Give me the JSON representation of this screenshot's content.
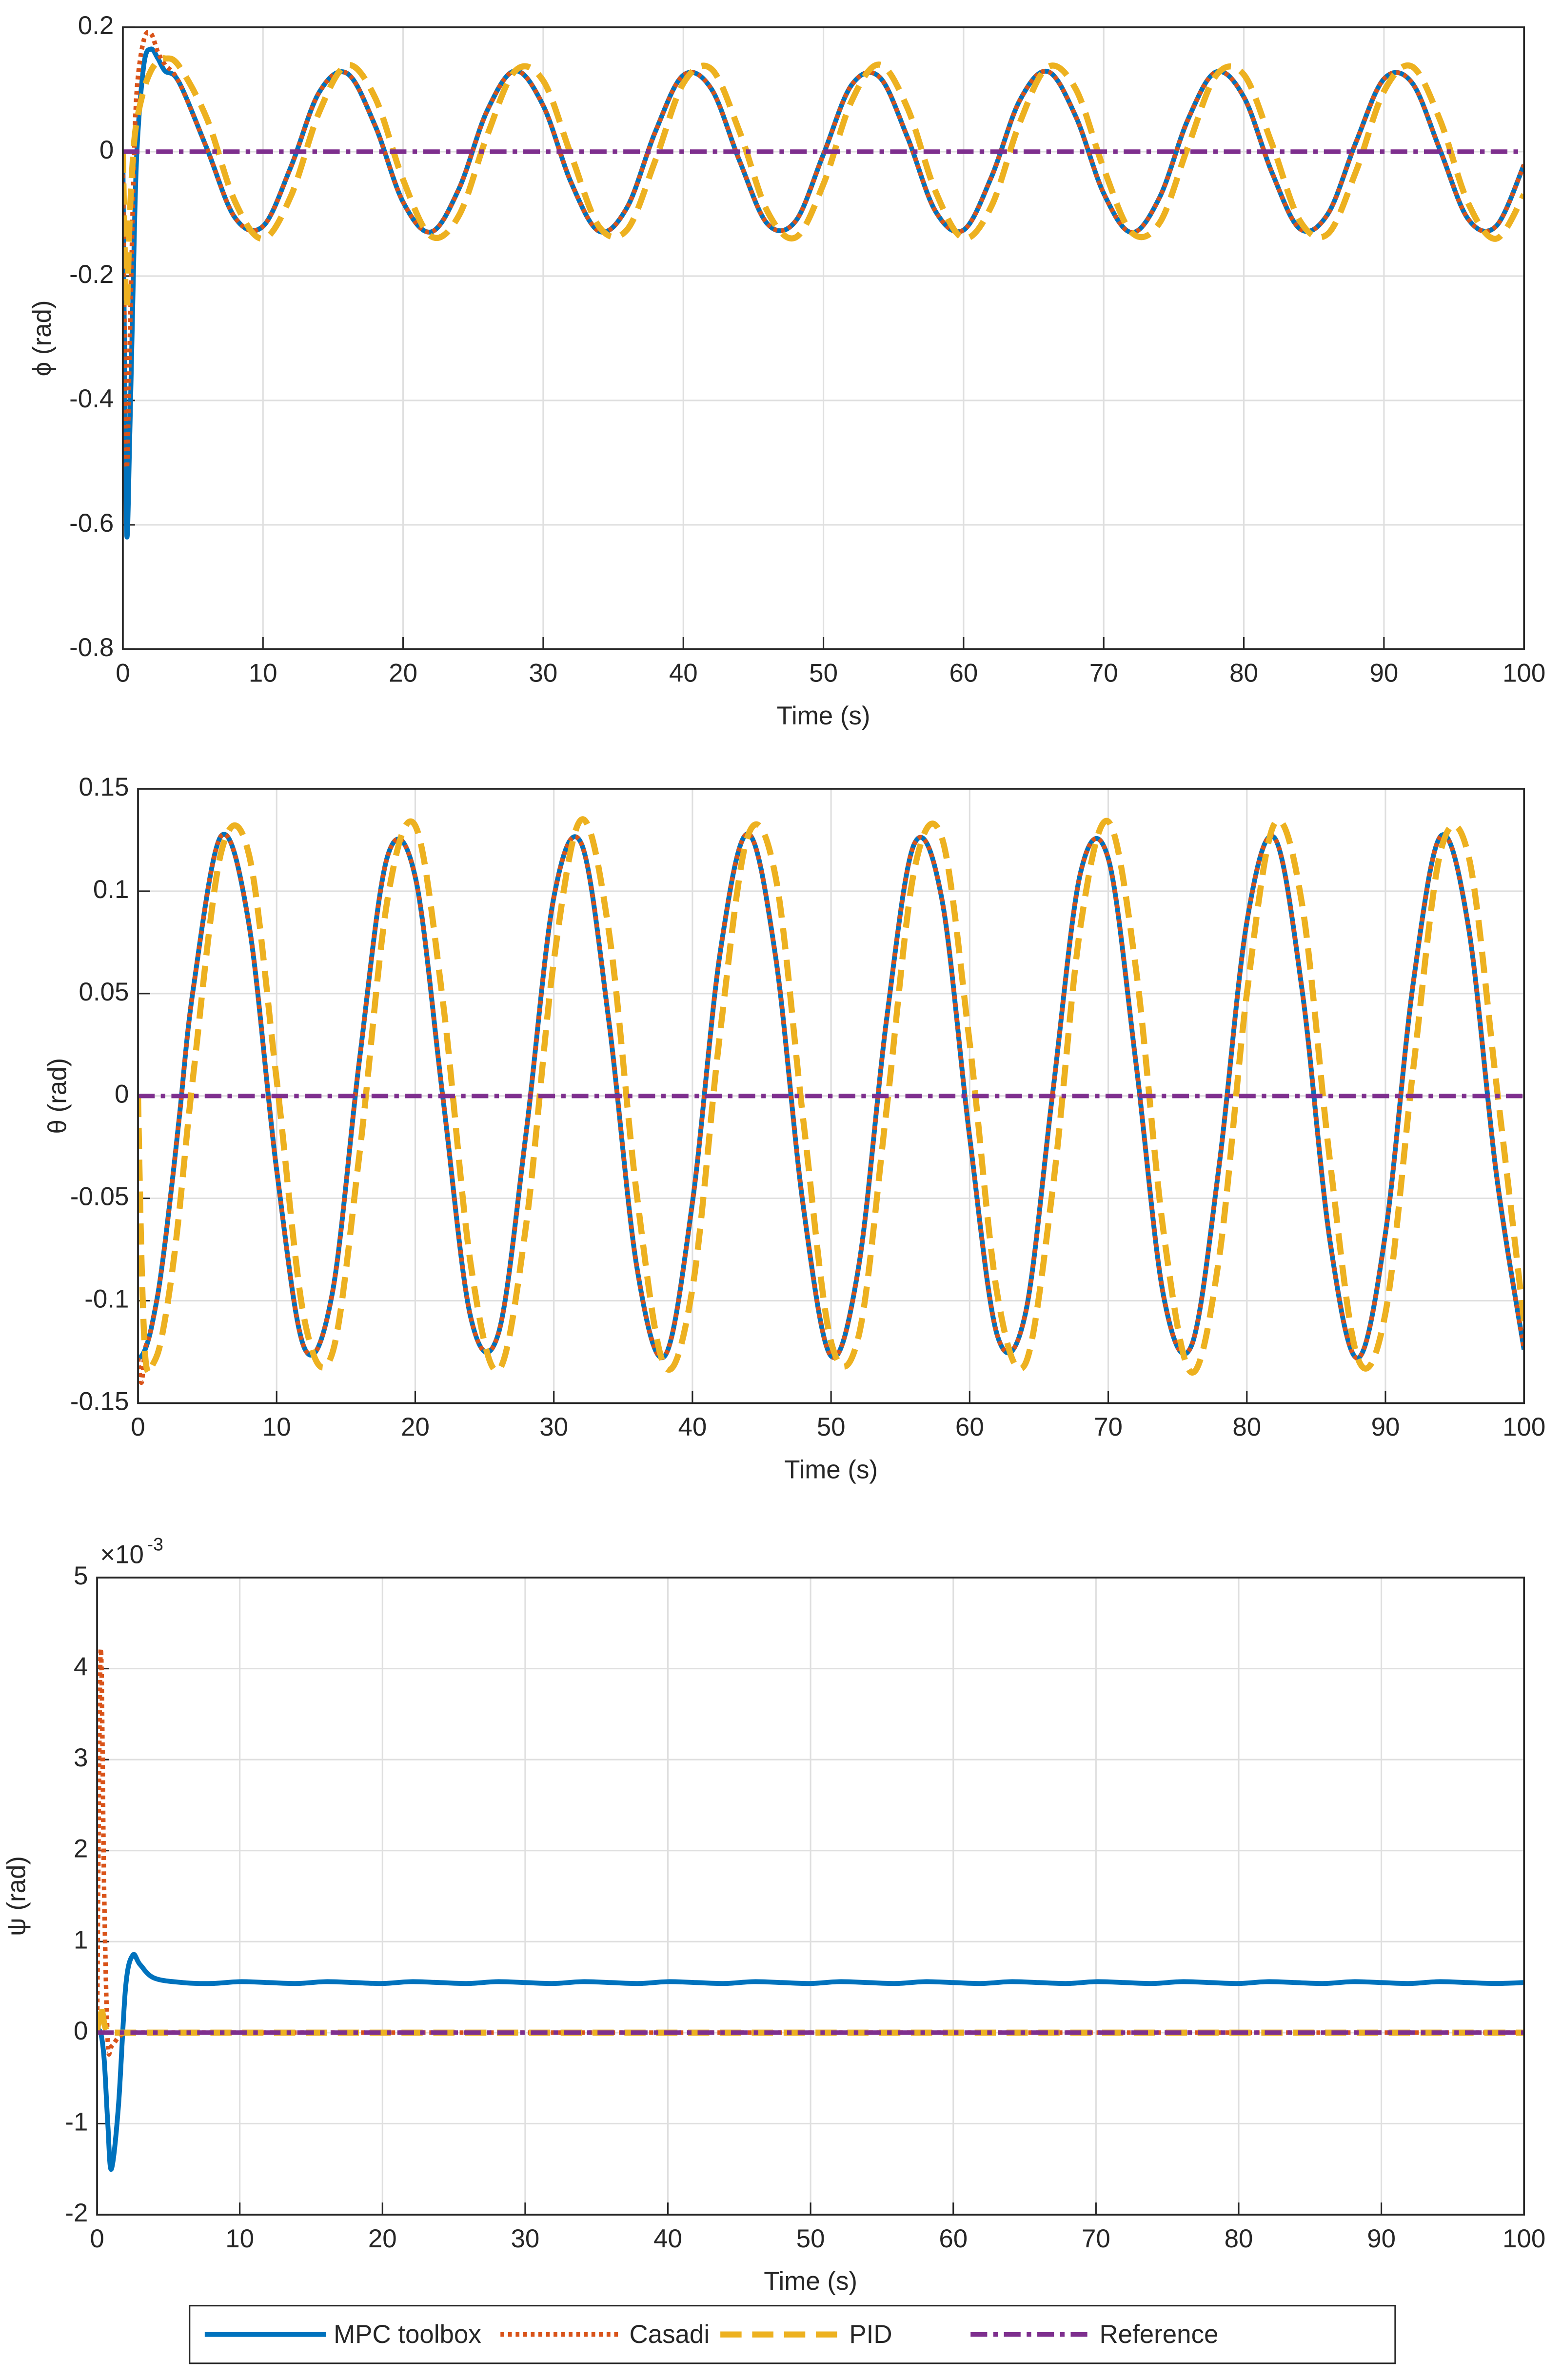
{
  "chart_data": [
    {
      "type": "line",
      "xlabel": "Time (s)",
      "ylabel": "ϕ (rad)",
      "x": [
        0,
        0.25,
        0.5,
        0.75,
        1,
        1.5,
        2,
        2.5,
        3,
        4,
        6,
        8,
        10,
        12,
        14,
        16,
        18,
        20,
        22,
        24,
        26,
        28,
        30,
        32,
        34,
        36,
        38,
        40,
        42,
        44,
        46,
        48,
        50,
        52,
        54,
        56,
        58,
        60,
        62,
        64,
        66,
        68,
        70,
        72,
        74,
        76,
        78,
        80,
        82,
        84,
        86,
        88,
        90,
        92,
        94,
        96,
        98,
        100
      ],
      "xlim": [
        0,
        100
      ],
      "xticks": [
        0,
        10,
        20,
        30,
        40,
        50,
        60,
        70,
        80,
        90,
        100
      ],
      "ylim": [
        -0.8,
        0.2
      ],
      "yticks": [
        -0.8,
        -0.6,
        -0.4,
        -0.2,
        0,
        0.2
      ],
      "grid": true,
      "series": [
        {
          "name": "MPC toolbox",
          "color": "#0072bd",
          "style": "solid",
          "values": [
            0,
            -0.6,
            -0.45,
            -0.2,
            0,
            0.14,
            0.165,
            0.15,
            0.13,
            0.112,
            0.005,
            -0.106,
            -0.12,
            -0.024,
            0.095,
            0.126,
            0.042,
            -0.081,
            -0.129,
            -0.059,
            0.066,
            0.13,
            0.074,
            -0.05,
            -0.128,
            -0.089,
            0.032,
            0.123,
            0.101,
            -0.014,
            -0.116,
            -0.112,
            -0.004,
            0.107,
            0.12,
            0.023,
            -0.096,
            -0.126,
            -0.04,
            0.082,
            0.129,
            0.057,
            -0.067,
            -0.13,
            -0.073,
            0.051,
            0.128,
            0.088,
            -0.033,
            -0.124,
            -0.1,
            0.015,
            0.117,
            0.111,
            0.003,
            -0.108,
            -0.12,
            -0.021
          ]
        },
        {
          "name": "Casadi",
          "color": "#d95319",
          "style": "dotted",
          "values": [
            0,
            -0.5,
            -0.3,
            -0.05,
            0.1,
            0.18,
            0.19,
            0.16,
            0.14,
            0.112,
            0.005,
            -0.106,
            -0.12,
            -0.024,
            0.095,
            0.126,
            0.042,
            -0.081,
            -0.129,
            -0.059,
            0.066,
            0.13,
            0.074,
            -0.05,
            -0.128,
            -0.089,
            0.032,
            0.123,
            0.101,
            -0.014,
            -0.116,
            -0.112,
            -0.004,
            0.107,
            0.12,
            0.023,
            -0.096,
            -0.126,
            -0.04,
            0.082,
            0.129,
            0.057,
            -0.067,
            -0.13,
            -0.073,
            0.051,
            0.128,
            0.088,
            -0.033,
            -0.124,
            -0.1,
            0.015,
            0.117,
            0.111,
            0.003,
            -0.108,
            -0.12,
            -0.021
          ]
        },
        {
          "name": "PID",
          "color": "#edb120",
          "style": "dashed",
          "values": [
            0,
            -0.25,
            -0.1,
            0,
            0.05,
            0.1,
            0.13,
            0.145,
            0.15,
            0.138,
            0.053,
            -0.08,
            -0.14,
            -0.071,
            0.063,
            0.139,
            0.087,
            -0.045,
            -0.136,
            -0.102,
            0.026,
            0.13,
            0.114,
            -0.006,
            -0.121,
            -0.125,
            -0.014,
            0.11,
            0.133,
            0.033,
            -0.096,
            -0.138,
            -0.052,
            0.081,
            0.14,
            0.07,
            -0.064,
            -0.139,
            -0.087,
            0.046,
            0.136,
            0.101,
            -0.027,
            -0.13,
            -0.114,
            0.007,
            0.122,
            0.124,
            0.013,
            -0.111,
            -0.132,
            -0.032,
            0.097,
            0.137,
            0.051,
            -0.082,
            -0.14,
            -0.069
          ]
        },
        {
          "name": "Reference",
          "color": "#7e2f8e",
          "style": "dashdot",
          "values": [
            0,
            0,
            0,
            0,
            0,
            0,
            0,
            0,
            0,
            0,
            0,
            0,
            0,
            0,
            0,
            0,
            0,
            0,
            0,
            0,
            0,
            0,
            0,
            0,
            0,
            0,
            0,
            0,
            0,
            0,
            0,
            0,
            0,
            0,
            0,
            0,
            0,
            0,
            0,
            0,
            0,
            0,
            0,
            0,
            0,
            0,
            0,
            0,
            0,
            0,
            0,
            0,
            0,
            0,
            0,
            0,
            0,
            0
          ]
        }
      ]
    },
    {
      "type": "line",
      "xlabel": "Time (s)",
      "ylabel": "θ (rad)",
      "x": [
        0,
        0.25,
        0.5,
        0.75,
        1,
        1.5,
        2,
        2.5,
        3,
        4,
        6,
        8,
        10,
        12,
        14,
        16,
        18,
        20,
        22,
        24,
        26,
        28,
        30,
        32,
        34,
        36,
        38,
        40,
        42,
        44,
        46,
        48,
        50,
        52,
        54,
        56,
        58,
        60,
        62,
        64,
        66,
        68,
        70,
        72,
        74,
        76,
        78,
        80,
        82,
        84,
        86,
        88,
        90,
        92,
        94,
        96,
        98,
        100
      ],
      "xlim": [
        0,
        100
      ],
      "xticks": [
        0,
        10,
        20,
        30,
        40,
        50,
        60,
        70,
        80,
        90,
        100
      ],
      "ylim": [
        -0.15,
        0.15
      ],
      "yticks": [
        -0.15,
        -0.1,
        -0.05,
        0,
        0.05,
        0.1,
        0.15
      ],
      "grid": true,
      "series": [
        {
          "name": "MPC toolbox",
          "color": "#0072bd",
          "style": "solid",
          "values": [
            -0.128,
            -0.127,
            -0.124,
            -0.119,
            -0.112,
            -0.094,
            -0.069,
            -0.04,
            -0.009,
            0.053,
            0.127,
            0.084,
            -0.036,
            -0.123,
            -0.097,
            0.019,
            0.117,
            0.107,
            -0.001,
            -0.108,
            -0.116,
            -0.018,
            0.097,
            0.123,
            0.035,
            -0.084,
            -0.127,
            -0.052,
            0.07,
            0.128,
            0.068,
            -0.054,
            -0.127,
            -0.083,
            0.037,
            0.123,
            0.096,
            -0.02,
            -0.117,
            -0.107,
            0.002,
            0.109,
            0.116,
            0.016,
            -0.098,
            -0.122,
            -0.034,
            0.085,
            0.126,
            0.051,
            -0.071,
            -0.128,
            -0.067,
            0.055,
            0.127,
            0.082,
            -0.038,
            -0.124
          ]
        },
        {
          "name": "Casadi",
          "color": "#d95319",
          "style": "dotted",
          "values": [
            -0.128,
            -0.14,
            -0.124,
            -0.119,
            -0.112,
            -0.094,
            -0.069,
            -0.04,
            -0.009,
            0.053,
            0.127,
            0.084,
            -0.036,
            -0.123,
            -0.097,
            0.019,
            0.117,
            0.107,
            -0.001,
            -0.108,
            -0.116,
            -0.018,
            0.097,
            0.123,
            0.035,
            -0.084,
            -0.127,
            -0.052,
            0.07,
            0.128,
            0.068,
            -0.054,
            -0.127,
            -0.083,
            0.037,
            0.123,
            0.096,
            -0.02,
            -0.117,
            -0.107,
            0.002,
            0.109,
            0.116,
            0.016,
            -0.098,
            -0.122,
            -0.034,
            0.085,
            0.126,
            0.051,
            -0.071,
            -0.128,
            -0.067,
            0.055,
            0.127,
            0.082,
            -0.038,
            -0.124
          ]
        },
        {
          "name": "PID",
          "color": "#edb120",
          "style": "dashed",
          "values": [
            0,
            -0.08,
            -0.125,
            -0.135,
            -0.132,
            -0.124,
            -0.107,
            -0.084,
            -0.055,
            0.011,
            0.119,
            0.118,
            0.008,
            -0.109,
            -0.126,
            -0.027,
            0.096,
            0.132,
            0.046,
            -0.082,
            -0.134,
            -0.063,
            0.066,
            0.135,
            0.079,
            -0.049,
            -0.132,
            -0.094,
            0.031,
            0.127,
            0.107,
            -0.012,
            -0.12,
            -0.117,
            -0.007,
            0.11,
            0.126,
            0.026,
            -0.097,
            -0.131,
            -0.045,
            0.083,
            0.134,
            0.062,
            -0.067,
            -0.135,
            -0.079,
            0.05,
            0.133,
            0.093,
            -0.032,
            -0.128,
            -0.106,
            0.013,
            0.12,
            0.117,
            0.006,
            -0.11
          ]
        },
        {
          "name": "Reference",
          "color": "#7e2f8e",
          "style": "dashdot",
          "values": [
            0,
            0,
            0,
            0,
            0,
            0,
            0,
            0,
            0,
            0,
            0,
            0,
            0,
            0,
            0,
            0,
            0,
            0,
            0,
            0,
            0,
            0,
            0,
            0,
            0,
            0,
            0,
            0,
            0,
            0,
            0,
            0,
            0,
            0,
            0,
            0,
            0,
            0,
            0,
            0,
            0,
            0,
            0,
            0,
            0,
            0,
            0,
            0,
            0,
            0,
            0,
            0,
            0,
            0,
            0,
            0,
            0,
            0
          ]
        }
      ]
    },
    {
      "type": "line",
      "xlabel": "Time (s)",
      "ylabel": "ψ (rad)",
      "y_multiplier": "×10",
      "y_multiplier_exponent": "-3",
      "x": [
        0,
        0.25,
        0.5,
        0.75,
        1,
        1.5,
        2,
        2.5,
        3,
        4,
        6,
        8,
        10,
        12,
        14,
        16,
        18,
        20,
        22,
        24,
        26,
        28,
        30,
        32,
        34,
        36,
        38,
        40,
        42,
        44,
        46,
        48,
        50,
        52,
        54,
        56,
        58,
        60,
        62,
        64,
        66,
        68,
        70,
        72,
        74,
        76,
        78,
        80,
        82,
        84,
        86,
        88,
        90,
        92,
        94,
        96,
        98,
        100
      ],
      "xlim": [
        0,
        100
      ],
      "xticks": [
        0,
        10,
        20,
        30,
        40,
        50,
        60,
        70,
        80,
        90,
        100
      ],
      "ylim": [
        -2,
        5
      ],
      "yticks": [
        -2,
        -1,
        0,
        1,
        2,
        3,
        4,
        5
      ],
      "grid": true,
      "legend": "bottom",
      "series": [
        {
          "name": "MPC toolbox",
          "color": "#0072bd",
          "style": "solid",
          "values": [
            0,
            0,
            -0.3,
            -1,
            -1.5,
            -0.8,
            0.5,
            0.85,
            0.75,
            0.6,
            0.55,
            0.54,
            0.56,
            0.55,
            0.54,
            0.56,
            0.55,
            0.54,
            0.56,
            0.55,
            0.54,
            0.56,
            0.55,
            0.54,
            0.56,
            0.55,
            0.54,
            0.56,
            0.55,
            0.54,
            0.56,
            0.55,
            0.54,
            0.56,
            0.55,
            0.54,
            0.56,
            0.55,
            0.54,
            0.56,
            0.55,
            0.54,
            0.56,
            0.55,
            0.54,
            0.56,
            0.55,
            0.54,
            0.56,
            0.55,
            0.54,
            0.56,
            0.55,
            0.54,
            0.56,
            0.55,
            0.54,
            0.55
          ]
        },
        {
          "name": "Casadi",
          "color": "#d95319",
          "style": "dotted",
          "values": [
            0,
            4.2,
            1.5,
            -0.1,
            -0.15,
            -0.05,
            0,
            0,
            0,
            0,
            0,
            0,
            0,
            0,
            0,
            0,
            0,
            0,
            0,
            0,
            0,
            0,
            0,
            0,
            0,
            0,
            0,
            0,
            0,
            0,
            0,
            0,
            0,
            0,
            0,
            0,
            0,
            0,
            0,
            0,
            0,
            0,
            0,
            0,
            0,
            0,
            0,
            0,
            0,
            0,
            0,
            0,
            0,
            0,
            0,
            0,
            0,
            0
          ]
        },
        {
          "name": "PID",
          "color": "#edb120",
          "style": "dashed",
          "values": [
            0,
            0.3,
            0.1,
            0,
            0,
            0,
            0,
            0,
            0,
            0,
            0,
            0,
            0,
            0,
            0,
            0,
            0,
            0,
            0,
            0,
            0,
            0,
            0,
            0,
            0,
            0,
            0,
            0,
            0,
            0,
            0,
            0,
            0,
            0,
            0,
            0,
            0,
            0,
            0,
            0,
            0,
            0,
            0,
            0,
            0,
            0,
            0,
            0,
            0,
            0,
            0,
            0,
            0,
            0,
            0,
            0,
            0,
            0
          ]
        },
        {
          "name": "Reference",
          "color": "#7e2f8e",
          "style": "dashdot",
          "values": [
            0,
            0,
            0,
            0,
            0,
            0,
            0,
            0,
            0,
            0,
            0,
            0,
            0,
            0,
            0,
            0,
            0,
            0,
            0,
            0,
            0,
            0,
            0,
            0,
            0,
            0,
            0,
            0,
            0,
            0,
            0,
            0,
            0,
            0,
            0,
            0,
            0,
            0,
            0,
            0,
            0,
            0,
            0,
            0,
            0,
            0,
            0,
            0,
            0,
            0,
            0,
            0,
            0,
            0,
            0,
            0,
            0,
            0
          ]
        }
      ]
    }
  ]
}
